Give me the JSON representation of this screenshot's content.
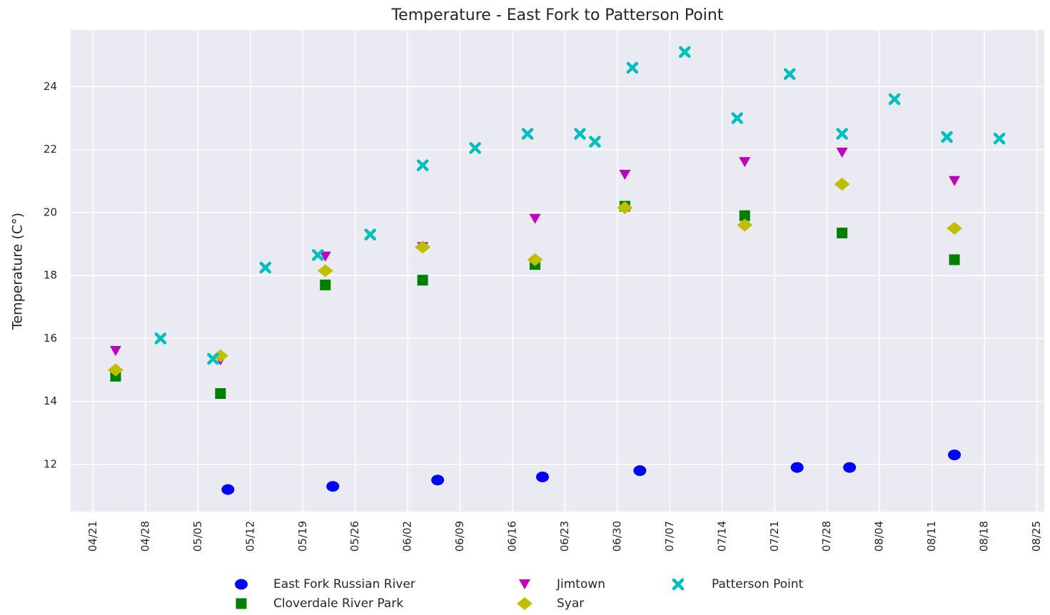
{
  "chart_data": {
    "type": "scatter",
    "title": "Temperature - East Fork to Patterson Point",
    "y_label": "Temperature (C°)",
    "xlim": [
      "04/18",
      "08/26"
    ],
    "xticks": [
      "04/21",
      "04/28",
      "05/05",
      "05/12",
      "05/19",
      "05/26",
      "06/02",
      "06/09",
      "06/16",
      "06/23",
      "06/30",
      "07/07",
      "07/14",
      "07/21",
      "07/28",
      "08/04",
      "08/11",
      "08/18",
      "08/25"
    ],
    "ylim": [
      10.5,
      25.8
    ],
    "yticks": [
      12,
      14,
      16,
      18,
      20,
      22,
      24
    ],
    "grid": true,
    "legend": "bottom",
    "series": [
      {
        "name": "East Fork Russian River",
        "color": "#0000ff",
        "marker": "o",
        "x": [
          "05/09",
          "05/23",
          "06/06",
          "06/20",
          "07/03",
          "07/24",
          "07/31",
          "08/14"
        ],
        "values": [
          11.2,
          11.3,
          11.5,
          11.6,
          11.8,
          11.9,
          11.9,
          12.3
        ]
      },
      {
        "name": "Cloverdale River Park",
        "color": "#008000",
        "marker": "s",
        "x": [
          "04/24",
          "05/08",
          "05/22",
          "06/04",
          "06/19",
          "07/01",
          "07/17",
          "07/30",
          "08/14"
        ],
        "values": [
          14.8,
          14.25,
          17.7,
          17.85,
          18.35,
          20.2,
          19.9,
          19.35,
          18.5
        ]
      },
      {
        "name": "Jimtown",
        "color": "#bf00bf",
        "marker": "v",
        "x": [
          "04/24",
          "05/08",
          "05/22",
          "06/04",
          "06/19",
          "07/01",
          "07/17",
          "07/30",
          "08/14"
        ],
        "values": [
          15.6,
          15.3,
          18.6,
          18.9,
          19.8,
          21.2,
          21.6,
          21.9,
          21.0
        ]
      },
      {
        "name": "Syar",
        "color": "#bfbf00",
        "marker": "D",
        "x": [
          "04/24",
          "05/08",
          "05/22",
          "06/04",
          "06/19",
          "07/01",
          "07/17",
          "07/30",
          "08/14"
        ],
        "values": [
          15.0,
          15.45,
          18.15,
          18.9,
          18.5,
          20.15,
          19.6,
          20.9,
          19.5
        ]
      },
      {
        "name": "Patterson Point",
        "color": "#00bfbf",
        "marker": "X",
        "x": [
          "04/30",
          "05/07",
          "05/14",
          "05/21",
          "05/28",
          "06/04",
          "06/11",
          "06/18",
          "06/25",
          "06/27",
          "07/02",
          "07/09",
          "07/16",
          "07/23",
          "07/30",
          "08/06",
          "08/13",
          "08/20"
        ],
        "values": [
          16.0,
          15.35,
          18.25,
          18.65,
          19.3,
          21.5,
          22.05,
          22.5,
          22.5,
          22.25,
          24.6,
          25.1,
          23.0,
          24.4,
          22.5,
          23.6,
          22.4,
          22.35
        ]
      }
    ]
  }
}
